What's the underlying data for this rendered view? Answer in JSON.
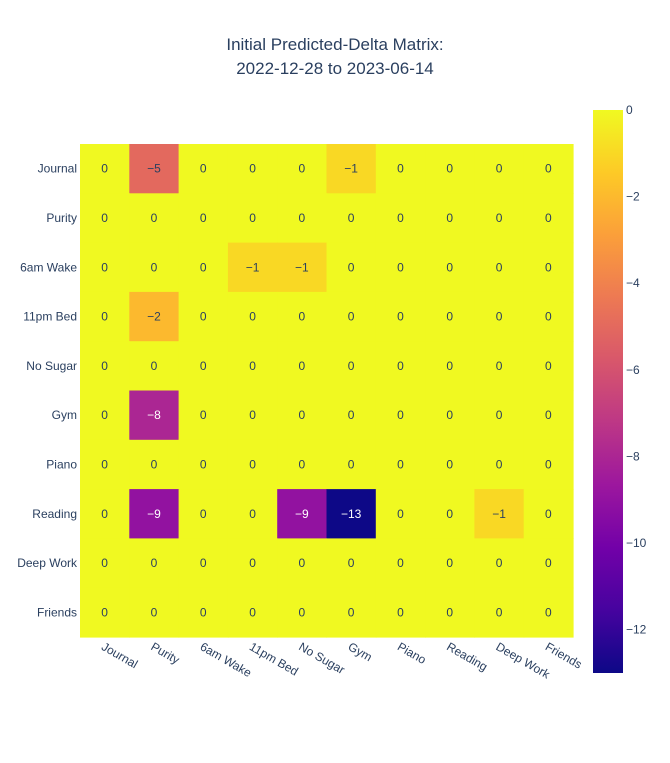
{
  "chart_data": {
    "type": "heatmap",
    "title_lines": [
      "Initial Predicted-Delta Matrix:",
      "2022-12-28 to 2023-06-14"
    ],
    "x_categories": [
      "Journal",
      "Purity",
      "6am Wake",
      "11pm Bed",
      "No Sugar",
      "Gym",
      "Piano",
      "Reading",
      "Deep Work",
      "Friends"
    ],
    "y_categories": [
      "Journal",
      "Purity",
      "6am Wake",
      "11pm Bed",
      "No Sugar",
      "Gym",
      "Piano",
      "Reading",
      "Deep Work",
      "Friends"
    ],
    "values": [
      [
        0,
        -5,
        0,
        0,
        0,
        -1,
        0,
        0,
        0,
        0
      ],
      [
        0,
        0,
        0,
        0,
        0,
        0,
        0,
        0,
        0,
        0
      ],
      [
        0,
        0,
        0,
        -1,
        -1,
        0,
        0,
        0,
        0,
        0
      ],
      [
        0,
        -2,
        0,
        0,
        0,
        0,
        0,
        0,
        0,
        0
      ],
      [
        0,
        0,
        0,
        0,
        0,
        0,
        0,
        0,
        0,
        0
      ],
      [
        0,
        -8,
        0,
        0,
        0,
        0,
        0,
        0,
        0,
        0
      ],
      [
        0,
        0,
        0,
        0,
        0,
        0,
        0,
        0,
        0,
        0
      ],
      [
        0,
        -9,
        0,
        0,
        -9,
        -13,
        0,
        0,
        -1,
        0
      ],
      [
        0,
        0,
        0,
        0,
        0,
        0,
        0,
        0,
        0,
        0
      ],
      [
        0,
        0,
        0,
        0,
        0,
        0,
        0,
        0,
        0,
        0
      ]
    ],
    "zrange": [
      -13,
      0
    ],
    "colorscale": "plasma",
    "colorbar_ticks": [
      0,
      -2,
      -4,
      -6,
      -8,
      -10,
      -12
    ],
    "colorbar_tick_labels": [
      "0",
      "−2",
      "−4",
      "−6",
      "−8",
      "−10",
      "−12"
    ],
    "x_tick_angle_deg": 30
  },
  "colors": {
    "text_dark": "#2a3f5f",
    "background": "#ffffff"
  }
}
